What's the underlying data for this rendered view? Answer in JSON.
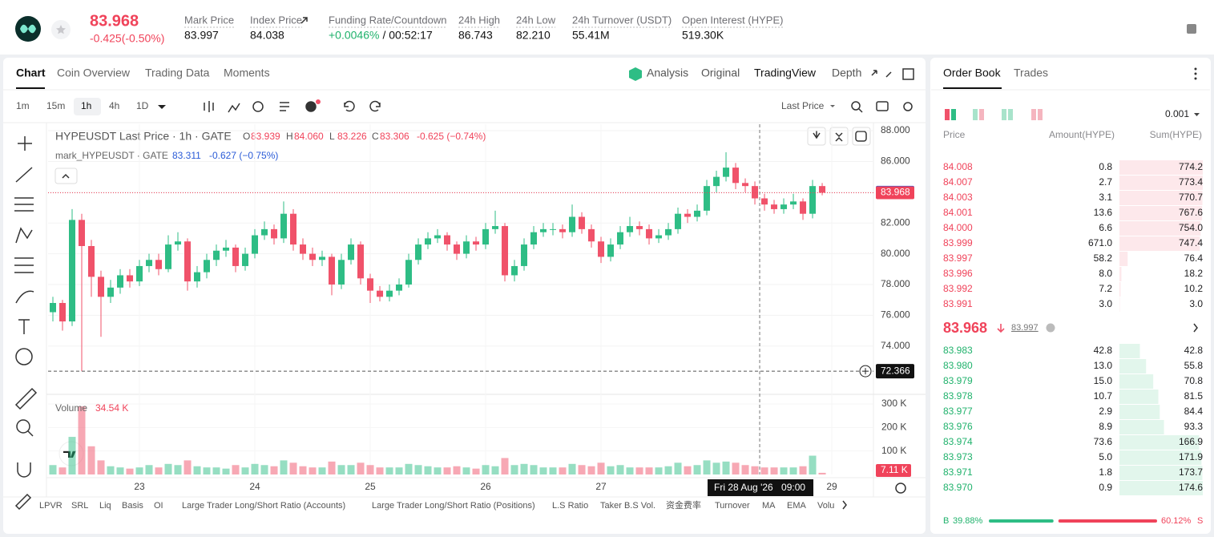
{
  "header": {
    "price": "83.968",
    "change": "-0.425(-0.50%)",
    "stats": [
      {
        "label": "Mark Price",
        "value": "83.997"
      },
      {
        "label": "Index Price",
        "value": "84.038"
      },
      {
        "label": "Funding Rate/Countdown",
        "value": "+0.0046%",
        "value2": "/ 00:52:17"
      },
      {
        "label": "24h High",
        "value": "86.743"
      },
      {
        "label": "24h Low",
        "value": "82.210"
      },
      {
        "label": "24h Turnover (USDT)",
        "value": "55.41M"
      },
      {
        "label": "Open Interest (HYPE)",
        "value": "519.30K"
      }
    ]
  },
  "tabs": [
    "Chart",
    "Coin Overview",
    "Trading Data",
    "Moments"
  ],
  "views": [
    "Analysis",
    "Original",
    "TradingView",
    "Depth"
  ],
  "intervals": [
    "1m",
    "15m",
    "1h",
    "4h",
    "1D"
  ],
  "price_source": "Last Price",
  "legend": {
    "symbol": "HYPEUSDT Last Price · 1h · GATE",
    "ohlc": [
      [
        "O",
        "83.939"
      ],
      [
        "H",
        "84.060"
      ],
      [
        "L",
        "83.226"
      ],
      [
        "C",
        "83.306"
      ]
    ],
    "change": "-0.625 (−0.74%)",
    "mark_symbol": "mark_HYPEUSDT · GATE",
    "mark_value": "83.311",
    "mark_change": "-0.627 (−0.75%)"
  },
  "chart": {
    "type": "candlestick",
    "up_color": "#2ebd85",
    "down_color": "#f0526a",
    "candles": [
      [
        76.2,
        77.2,
        75.6,
        76.8
      ],
      [
        76.8,
        77.0,
        75.0,
        75.6
      ],
      [
        75.6,
        82.9,
        75.3,
        82.2
      ],
      [
        82.2,
        82.6,
        72.366,
        80.5
      ],
      [
        80.5,
        80.9,
        77.2,
        78.5
      ],
      [
        78.5,
        78.9,
        74.6,
        77.2
      ],
      [
        77.2,
        78.3,
        76.8,
        77.8
      ],
      [
        77.8,
        79.0,
        77.4,
        78.6
      ],
      [
        78.6,
        79.0,
        77.8,
        78.2
      ],
      [
        78.2,
        79.6,
        77.9,
        79.2
      ],
      [
        79.2,
        80.0,
        78.8,
        79.6
      ],
      [
        79.6,
        80.0,
        78.6,
        79.0
      ],
      [
        79.0,
        81.2,
        78.8,
        80.6
      ],
      [
        80.6,
        81.4,
        80.2,
        80.8
      ],
      [
        80.8,
        81.0,
        77.6,
        78.2
      ],
      [
        78.2,
        79.2,
        77.8,
        78.8
      ],
      [
        78.8,
        80.0,
        78.4,
        79.6
      ],
      [
        79.6,
        80.6,
        79.2,
        80.2
      ],
      [
        80.2,
        80.9,
        79.8,
        80.4
      ],
      [
        80.4,
        80.6,
        78.8,
        79.2
      ],
      [
        79.2,
        80.4,
        78.9,
        80.0
      ],
      [
        80.0,
        81.6,
        79.7,
        81.2
      ],
      [
        81.2,
        82.1,
        80.9,
        81.6
      ],
      [
        81.6,
        81.9,
        80.6,
        81.0
      ],
      [
        81.0,
        83.4,
        80.7,
        82.6
      ],
      [
        82.6,
        82.9,
        80.2,
        80.6
      ],
      [
        80.6,
        81.0,
        79.6,
        80.0
      ],
      [
        80.0,
        80.4,
        79.2,
        79.6
      ],
      [
        79.6,
        80.2,
        79.2,
        79.8
      ],
      [
        79.8,
        80.0,
        77.3,
        78.0
      ],
      [
        78.0,
        80.0,
        77.7,
        79.6
      ],
      [
        79.6,
        81.0,
        79.3,
        80.6
      ],
      [
        80.6,
        80.8,
        78.0,
        78.4
      ],
      [
        78.4,
        78.7,
        76.8,
        77.6
      ],
      [
        77.6,
        77.9,
        76.9,
        77.2
      ],
      [
        77.2,
        78.0,
        76.9,
        77.6
      ],
      [
        77.6,
        78.4,
        77.3,
        78.0
      ],
      [
        78.0,
        80.0,
        77.8,
        79.6
      ],
      [
        79.6,
        81.0,
        79.3,
        80.6
      ],
      [
        80.6,
        81.4,
        80.3,
        81.0
      ],
      [
        81.0,
        81.6,
        80.7,
        81.2
      ],
      [
        81.2,
        81.4,
        80.2,
        80.6
      ],
      [
        80.6,
        80.8,
        79.6,
        80.0
      ],
      [
        80.0,
        81.2,
        79.7,
        80.8
      ],
      [
        80.8,
        81.1,
        80.2,
        80.6
      ],
      [
        80.6,
        82.0,
        80.3,
        81.6
      ],
      [
        81.6,
        82.8,
        81.3,
        81.8
      ],
      [
        81.8,
        82.0,
        78.2,
        78.6
      ],
      [
        78.6,
        79.6,
        78.2,
        79.2
      ],
      [
        79.2,
        81.0,
        78.9,
        80.6
      ],
      [
        80.6,
        81.8,
        80.3,
        81.4
      ],
      [
        81.4,
        82.0,
        81.1,
        81.6
      ],
      [
        81.6,
        82.0,
        81.2,
        81.6
      ],
      [
        81.6,
        81.9,
        81.0,
        81.4
      ],
      [
        81.4,
        83.2,
        81.1,
        82.4
      ],
      [
        82.4,
        82.7,
        81.3,
        81.6
      ],
      [
        81.6,
        81.9,
        80.4,
        80.8
      ],
      [
        80.8,
        81.1,
        79.4,
        79.8
      ],
      [
        79.8,
        81.0,
        79.5,
        80.6
      ],
      [
        80.6,
        81.8,
        80.3,
        81.4
      ],
      [
        81.4,
        82.4,
        81.1,
        81.8
      ],
      [
        81.8,
        82.1,
        81.2,
        81.6
      ],
      [
        81.6,
        81.9,
        80.6,
        81.0
      ],
      [
        81.0,
        81.6,
        80.7,
        81.2
      ],
      [
        81.2,
        82.0,
        80.9,
        81.6
      ],
      [
        81.6,
        83.0,
        81.3,
        82.6
      ],
      [
        82.6,
        82.9,
        82.0,
        82.4
      ],
      [
        82.4,
        83.2,
        82.1,
        82.8
      ],
      [
        82.8,
        84.8,
        82.5,
        84.4
      ],
      [
        84.4,
        85.4,
        84.0,
        85.0
      ],
      [
        85.0,
        86.6,
        84.7,
        85.6
      ],
      [
        85.6,
        85.9,
        84.2,
        84.6
      ],
      [
        84.6,
        84.9,
        84.0,
        84.4
      ],
      [
        84.4,
        84.7,
        83.2,
        83.6
      ],
      [
        83.6,
        83.9,
        82.8,
        83.2
      ],
      [
        83.2,
        83.5,
        82.6,
        82.9
      ],
      [
        82.9,
        83.6,
        82.6,
        83.2
      ],
      [
        83.2,
        83.9,
        82.9,
        83.4
      ],
      [
        83.4,
        83.6,
        82.2,
        82.6
      ],
      [
        82.6,
        84.8,
        82.3,
        84.4
      ],
      [
        84.4,
        84.6,
        83.8,
        83.968
      ]
    ],
    "volumes": [
      40,
      30,
      160,
      290,
      120,
      60,
      35,
      30,
      25,
      30,
      40,
      30,
      45,
      40,
      60,
      35,
      30,
      30,
      25,
      40,
      30,
      45,
      40,
      35,
      60,
      50,
      35,
      30,
      30,
      55,
      40,
      40,
      50,
      40,
      30,
      30,
      30,
      45,
      40,
      35,
      30,
      30,
      35,
      30,
      25,
      40,
      35,
      70,
      40,
      45,
      40,
      30,
      30,
      30,
      45,
      40,
      35,
      50,
      35,
      40,
      30,
      30,
      30,
      30,
      35,
      50,
      35,
      40,
      60,
      50,
      55,
      50,
      40,
      35,
      30,
      30,
      30,
      30,
      35,
      80,
      7.11
    ],
    "xlim": [
      -0.5,
      85.33
    ],
    "xticks": [
      {
        "value": 9,
        "label": "23"
      },
      {
        "value": 21,
        "label": "24"
      },
      {
        "value": 33,
        "label": "25"
      },
      {
        "value": 45,
        "label": "26"
      },
      {
        "value": 57,
        "label": "27"
      },
      {
        "value": 81,
        "label": "29"
      }
    ],
    "ylim": [
      70.86,
      88.42
    ],
    "yticks": [
      {
        "value": 88,
        "label": "88.000"
      },
      {
        "value": 86,
        "label": "86.000"
      },
      {
        "value": 84,
        "label": "84.000"
      },
      {
        "value": 82,
        "label": "82.000"
      },
      {
        "value": 80,
        "label": "80.000"
      },
      {
        "value": 78,
        "label": "78.000"
      },
      {
        "value": 76,
        "label": "76.000"
      },
      {
        "value": 74,
        "label": "74.000"
      }
    ],
    "vol_ylim": [
      0,
      300
    ],
    "vol_yticks": [
      {
        "value": 100,
        "label": "100 K"
      },
      {
        "value": 200,
        "label": "200 K"
      },
      {
        "value": 300,
        "label": "300 K"
      }
    ],
    "last_price": 83.968,
    "mark_price": 83.997,
    "cursor_price": 72.366,
    "cursor_x": 73.5,
    "cursor_date": "Fri 28 Aug '26",
    "cursor_time": "09:00",
    "vol_label": "Volume",
    "vol_value": "34.54 K",
    "vol_current": "7.11 K"
  },
  "indicators": [
    "LPVR",
    "SRL",
    "Liq",
    "Basis",
    "OI",
    "Large Trader Long/Short Ratio (Accounts)",
    "Large Trader Long/Short Ratio (Positions)",
    "L.S Ratio",
    "Taker B.S Vol.",
    "资金费率",
    "Turnover",
    "MA",
    "EMA",
    "Volu"
  ],
  "order_book": {
    "tabs": [
      "Order Book",
      "Trades"
    ],
    "precision": "0.001",
    "columns": [
      "Price",
      "Amount(HYPE)",
      "Sum(HYPE)"
    ],
    "asks": [
      [
        "84.008",
        "0.8",
        "774.2"
      ],
      [
        "84.007",
        "2.7",
        "773.4"
      ],
      [
        "84.003",
        "3.1",
        "770.7"
      ],
      [
        "84.001",
        "13.6",
        "767.6"
      ],
      [
        "84.000",
        "6.6",
        "754.0"
      ],
      [
        "83.999",
        "671.0",
        "747.4"
      ],
      [
        "83.997",
        "58.2",
        "76.4"
      ],
      [
        "83.996",
        "8.0",
        "18.2"
      ],
      [
        "83.992",
        "7.2",
        "10.2"
      ],
      [
        "83.991",
        "3.0",
        "3.0"
      ]
    ],
    "last": "83.968",
    "mark": "83.997",
    "bids": [
      [
        "83.983",
        "42.8",
        "42.8"
      ],
      [
        "83.980",
        "13.0",
        "55.8"
      ],
      [
        "83.979",
        "15.0",
        "70.8"
      ],
      [
        "83.978",
        "10.7",
        "81.5"
      ],
      [
        "83.977",
        "2.9",
        "84.4"
      ],
      [
        "83.976",
        "8.9",
        "93.3"
      ],
      [
        "83.974",
        "73.6",
        "166.9"
      ],
      [
        "83.973",
        "5.0",
        "171.9"
      ],
      [
        "83.971",
        "1.8",
        "173.7"
      ],
      [
        "83.970",
        "0.9",
        "174.6"
      ]
    ],
    "buy_label": "B",
    "buy": 39.88,
    "buy_text": "39.88%",
    "sell": 60.12,
    "sell_text": "60.12%",
    "sell_label": "S"
  }
}
